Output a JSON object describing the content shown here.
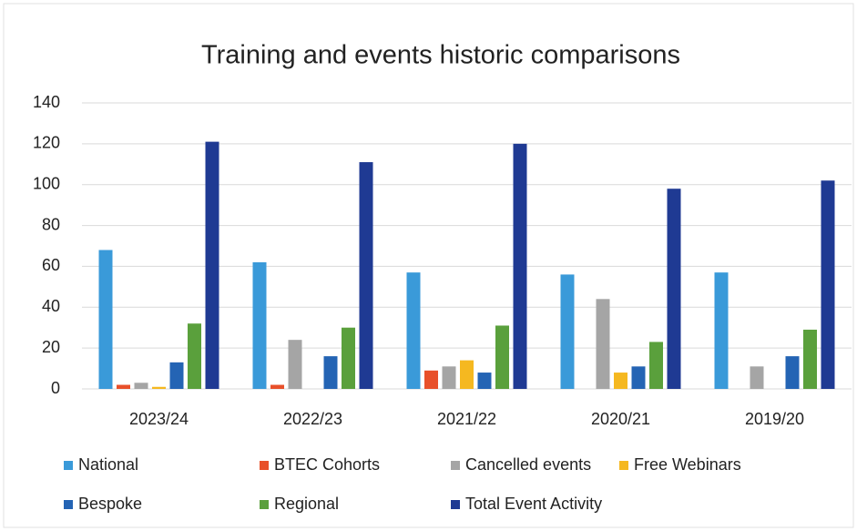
{
  "chart_data": {
    "type": "bar",
    "title": "Training and events historic comparisons",
    "categories": [
      "2023/24",
      "2022/23",
      "2021/22",
      "2020/21",
      "2019/20"
    ],
    "series": [
      {
        "name": "National",
        "color": "#3a9ad9",
        "values": [
          68,
          62,
          57,
          56,
          57
        ]
      },
      {
        "name": "BTEC Cohorts",
        "color": "#e8502a",
        "values": [
          2,
          2,
          9,
          0,
          0
        ]
      },
      {
        "name": "Cancelled events",
        "color": "#a5a5a5",
        "values": [
          3,
          24,
          11,
          44,
          11
        ]
      },
      {
        "name": "Free Webinars",
        "color": "#f5b820",
        "values": [
          1,
          0,
          14,
          8,
          0
        ]
      },
      {
        "name": "Bespoke",
        "color": "#2464b4",
        "values": [
          13,
          16,
          8,
          11,
          16
        ]
      },
      {
        "name": "Regional",
        "color": "#5aa03c",
        "values": [
          32,
          30,
          31,
          23,
          29
        ]
      },
      {
        "name": "Total Event Activity",
        "color": "#1f3a93",
        "values": [
          121,
          111,
          120,
          98,
          102
        ]
      }
    ],
    "ylim": [
      0,
      140
    ],
    "yticks": [
      0,
      20,
      40,
      60,
      80,
      100,
      120,
      140
    ],
    "grid": true
  }
}
